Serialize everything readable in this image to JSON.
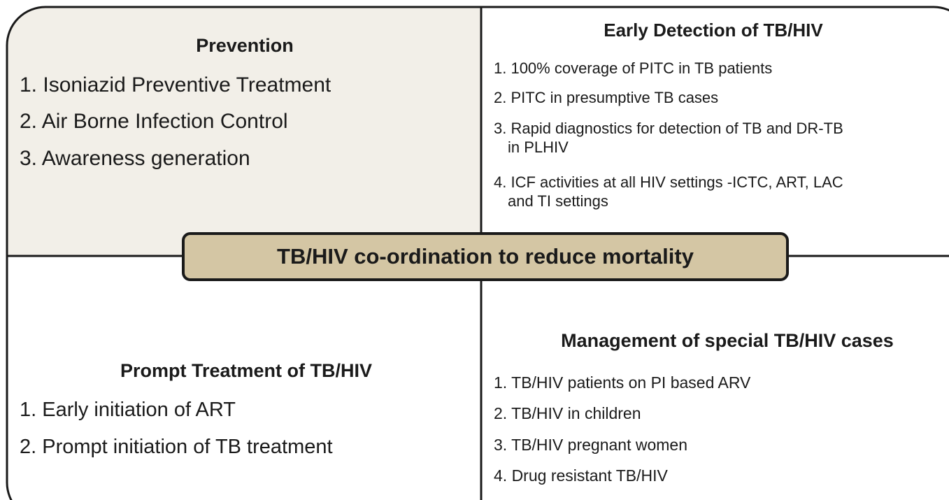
{
  "center": "TB/HIV co-ordination to reduce mortality",
  "quadrants": [
    {
      "title": "Prevention",
      "items": [
        [
          "1. Isoniazid Preventive Treatment"
        ],
        [
          "2. Air Borne Infection Control"
        ],
        [
          "3. Awareness generation"
        ]
      ]
    },
    {
      "title": "Early Detection of TB/HIV",
      "items": [
        [
          "1. 100% coverage of PITC in TB patients"
        ],
        [
          "2. PITC in presumptive TB cases"
        ],
        [
          "3. Rapid diagnostics for detection of TB and DR-TB",
          "in PLHIV"
        ],
        [
          "4. ICF activities at all HIV settings -ICTC, ART, LAC",
          "and TI settings"
        ]
      ]
    },
    {
      "title": "Prompt Treatment of TB/HIV",
      "items": [
        [
          "1. Early initiation of ART"
        ],
        [
          "2. Prompt initiation of TB treatment"
        ]
      ]
    },
    {
      "title": "Management of special TB/HIV cases",
      "items": [
        [
          "1. TB/HIV patients on PI based ARV"
        ],
        [
          "2. TB/HIV in children"
        ],
        [
          "3. TB/HIV pregnant women"
        ],
        [
          "4. Drug resistant TB/HIV"
        ]
      ]
    }
  ]
}
